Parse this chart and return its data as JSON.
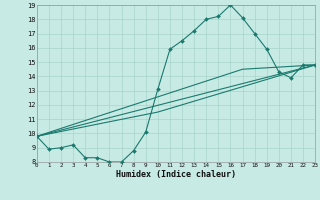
{
  "xlabel": "Humidex (Indice chaleur)",
  "background_color": "#c8eae4",
  "grid_color": "#a8d4cc",
  "line_color": "#1a7a6e",
  "xlim": [
    0,
    23
  ],
  "ylim": [
    8,
    19
  ],
  "xticks": [
    0,
    1,
    2,
    3,
    4,
    5,
    6,
    7,
    8,
    9,
    10,
    11,
    12,
    13,
    14,
    15,
    16,
    17,
    18,
    19,
    20,
    21,
    22,
    23
  ],
  "yticks": [
    8,
    9,
    10,
    11,
    12,
    13,
    14,
    15,
    16,
    17,
    18,
    19
  ],
  "curve1_x": [
    0,
    1,
    2,
    3,
    4,
    5,
    6,
    7,
    8,
    9,
    10,
    11,
    12,
    13,
    14,
    15,
    16,
    17,
    18,
    19,
    20,
    21,
    22,
    23
  ],
  "curve1_y": [
    9.8,
    8.9,
    9.0,
    9.2,
    8.3,
    8.3,
    8.0,
    8.0,
    8.8,
    10.1,
    13.1,
    15.9,
    16.5,
    17.2,
    18.0,
    18.2,
    19.0,
    18.1,
    17.0,
    15.9,
    14.3,
    13.9,
    14.8,
    14.8
  ],
  "curve2_x": [
    0,
    23
  ],
  "curve2_y": [
    9.8,
    14.8
  ],
  "curve3_x": [
    0,
    17,
    23
  ],
  "curve3_y": [
    9.8,
    14.5,
    14.8
  ],
  "curve4_x": [
    0,
    10,
    23
  ],
  "curve4_y": [
    9.8,
    11.5,
    14.8
  ]
}
